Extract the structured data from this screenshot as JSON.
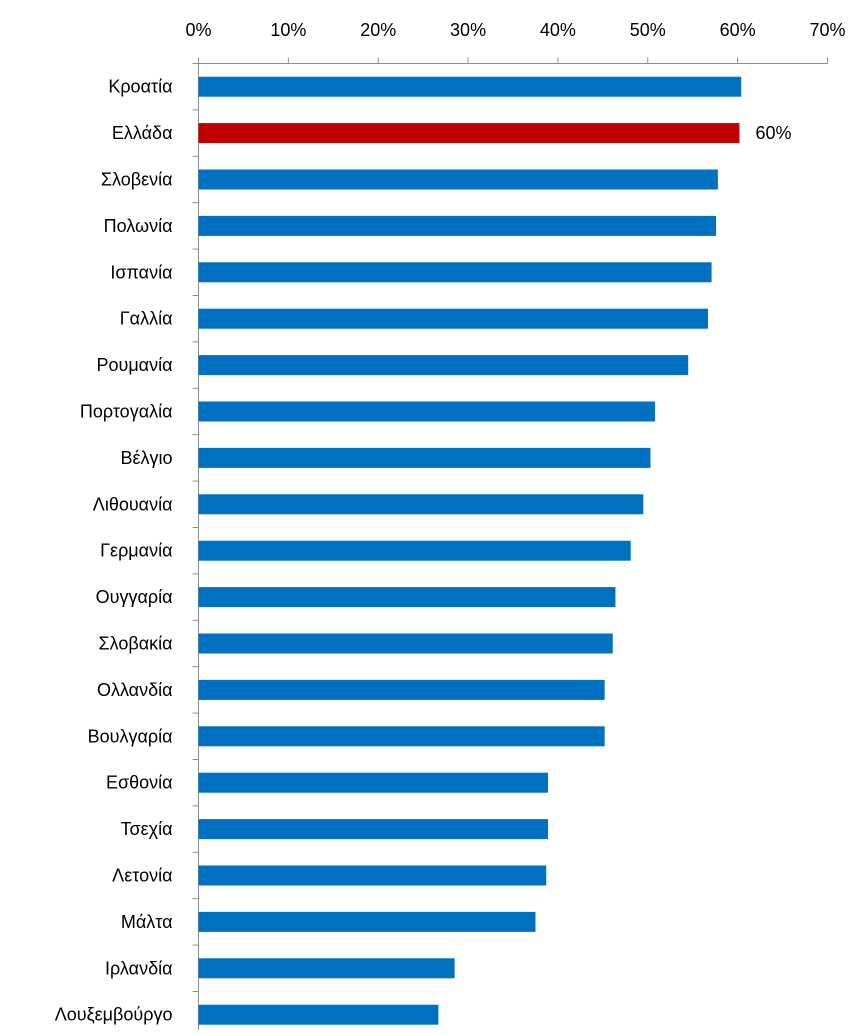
{
  "chart_data": {
    "type": "bar",
    "orientation": "horizontal",
    "categories": [
      "Κροατία",
      "Ελλάδα",
      "Σλοβενία",
      "Πολωνία",
      "Ισπανία",
      "Γαλλία",
      "Ρουμανία",
      "Πορτογαλία",
      "Βέλγιο",
      "Λιθουανία",
      "Γερμανία",
      "Ουγγαρία",
      "Σλοβακία",
      "Ολλανδία",
      "Βουλγαρία",
      "Εσθονία",
      "Τσεχία",
      "Λετονία",
      "Μάλτα",
      "Ιρλανδία",
      "Λουξεμβούργο"
    ],
    "values": [
      60.4,
      60.2,
      57.8,
      57.6,
      57.1,
      56.7,
      54.5,
      50.8,
      50.3,
      49.5,
      48.1,
      46.4,
      46.1,
      45.2,
      45.2,
      38.9,
      38.9,
      38.7,
      37.5,
      28.5,
      26.7
    ],
    "ticks": [
      "0%",
      "10%",
      "20%",
      "30%",
      "40%",
      "50%",
      "60%",
      "70%"
    ],
    "xlim": [
      0,
      70
    ],
    "x_axis_position": "top",
    "grid": false,
    "colors": {
      "default": "#0070C0",
      "highlight": "#C00000"
    },
    "highlight_category": "Ελλάδα",
    "data_labels": [
      {
        "category": "Ελλάδα",
        "text": "60%"
      }
    ]
  }
}
